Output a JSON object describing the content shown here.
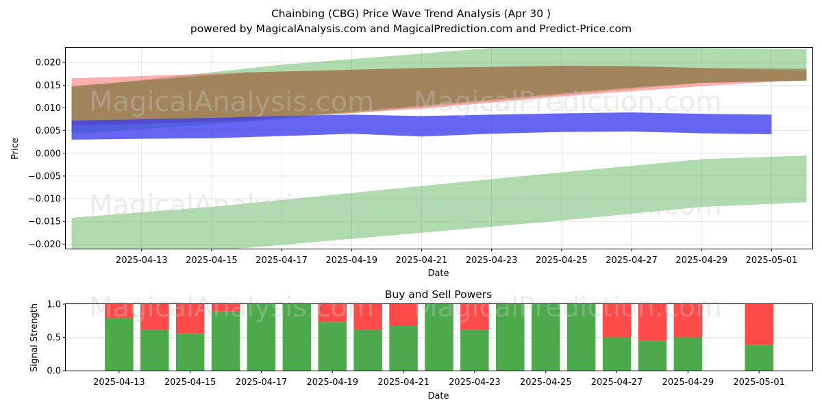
{
  "figure": {
    "title": "Chainbing (CBG) Price Wave Trend Analysis (Apr 30 )",
    "subtitle": "powered by MagicalAnalysis.com and MagicalPrediction.com and Predict-Price.com",
    "watermarks": [
      "MagicalAnalysis.com",
      "MagicalPrediction.com"
    ]
  },
  "chart_data": [
    {
      "type": "area",
      "title": "",
      "xlabel": "Date",
      "ylabel": "Price",
      "ylim": [
        -0.021,
        0.0232
      ],
      "xlim": [
        "2025-04-10T20:00",
        "2025-05-02T04:00"
      ],
      "x_ticks": [
        "2025-04-13",
        "2025-04-15",
        "2025-04-17",
        "2025-04-19",
        "2025-04-21",
        "2025-04-23",
        "2025-04-25",
        "2025-04-27",
        "2025-04-29",
        "2025-05-01"
      ],
      "y_ticks": [
        0.02,
        0.015,
        0.01,
        0.005,
        0.0,
        -0.005,
        -0.01,
        -0.015,
        -0.02
      ],
      "y_tick_labels": [
        "0.020",
        "0.015",
        "0.010",
        "0.005",
        "0.000",
        "−0.005",
        "−0.010",
        "−0.015",
        "−0.020"
      ],
      "grid": true,
      "series": [
        {
          "name": "green upper band",
          "color": "#2ca02c",
          "opacity": 0.38,
          "x": [
            "2025-04-11",
            "2025-04-17",
            "2025-04-23",
            "2025-04-29",
            "2025-05-02"
          ],
          "upper": [
            0.0145,
            0.0195,
            0.0232,
            0.0232,
            0.023
          ],
          "lower": [
            0.0042,
            0.0075,
            0.0115,
            0.0155,
            0.016
          ]
        },
        {
          "name": "green lower band",
          "color": "#2ca02c",
          "opacity": 0.38,
          "x": [
            "2025-04-11",
            "2025-04-15",
            "2025-04-21",
            "2025-04-25",
            "2025-04-29",
            "2025-05-02"
          ],
          "upper": [
            -0.0142,
            -0.0118,
            -0.0072,
            -0.0042,
            -0.0013,
            -0.0005
          ],
          "lower": [
            -0.0215,
            -0.0215,
            -0.0175,
            -0.0148,
            -0.0118,
            -0.0108
          ]
        },
        {
          "name": "red band",
          "color": "#ff4d4d",
          "opacity": 0.45,
          "x": [
            "2025-04-11",
            "2025-04-16",
            "2025-04-21",
            "2025-04-25",
            "2025-04-29",
            "2025-05-02"
          ],
          "upper": [
            0.0165,
            0.0178,
            0.0188,
            0.0192,
            0.0188,
            0.018
          ],
          "lower": [
            0.0062,
            0.0075,
            0.0098,
            0.0125,
            0.0148,
            0.0162
          ]
        },
        {
          "name": "brown band",
          "color": "#8c7a4a",
          "opacity": 0.7,
          "x": [
            "2025-04-11",
            "2025-04-16",
            "2025-04-21",
            "2025-04-25",
            "2025-04-27",
            "2025-04-29",
            "2025-05-02"
          ],
          "upper": [
            0.0148,
            0.0178,
            0.0188,
            0.0193,
            0.0192,
            0.0188,
            0.0186
          ],
          "lower": [
            0.006,
            0.0072,
            0.0105,
            0.0132,
            0.0145,
            0.0155,
            0.016
          ]
        },
        {
          "name": "blue band",
          "color": "#3b3bf0",
          "opacity": 0.78,
          "x": [
            "2025-04-11",
            "2025-04-13",
            "2025-04-15",
            "2025-04-17",
            "2025-04-19",
            "2025-04-21",
            "2025-04-23",
            "2025-04-25",
            "2025-04-27",
            "2025-04-29",
            "2025-05-01"
          ],
          "upper": [
            0.0072,
            0.0075,
            0.0078,
            0.0082,
            0.0085,
            0.0082,
            0.0085,
            0.0088,
            0.009,
            0.0087,
            0.0085
          ],
          "lower": [
            0.003,
            0.0032,
            0.0033,
            0.0038,
            0.0043,
            0.0037,
            0.0043,
            0.0047,
            0.0048,
            0.0044,
            0.0042
          ]
        }
      ]
    },
    {
      "type": "bar",
      "title": "Buy and Sell Powers",
      "xlabel": "Date",
      "ylabel": "Signal Strength",
      "ylim": [
        0,
        1.0
      ],
      "xlim": [
        "2025-04-11T12:00",
        "2025-05-02T12:00"
      ],
      "x_ticks": [
        "2025-04-13",
        "2025-04-15",
        "2025-04-17",
        "2025-04-19",
        "2025-04-21",
        "2025-04-23",
        "2025-04-25",
        "2025-04-27",
        "2025-04-29",
        "2025-05-01"
      ],
      "y_ticks": [
        0.0,
        0.5,
        1.0
      ],
      "y_tick_labels": [
        "0.0",
        "0.5",
        "1.0"
      ],
      "grid": true,
      "buy_color": "#4caa4c",
      "sell_color": "#ff4a4a",
      "categories": [
        "2025-04-13",
        "2025-04-14",
        "2025-04-15",
        "2025-04-16",
        "2025-04-17",
        "2025-04-18",
        "2025-04-19",
        "2025-04-20",
        "2025-04-21",
        "2025-04-22",
        "2025-04-23",
        "2025-04-24",
        "2025-04-25",
        "2025-04-26",
        "2025-04-27",
        "2025-04-28",
        "2025-04-29",
        "2025-05-01"
      ],
      "series": [
        {
          "name": "Buy",
          "values": [
            0.79,
            0.61,
            0.56,
            0.89,
            1.0,
            1.0,
            0.73,
            0.61,
            0.68,
            1.0,
            0.61,
            1.0,
            1.0,
            1.0,
            0.5,
            0.45,
            0.5,
            0.39
          ]
        },
        {
          "name": "Sell",
          "values": [
            0.21,
            0.39,
            0.44,
            0.11,
            0.0,
            0.0,
            0.27,
            0.39,
            0.32,
            0.0,
            0.39,
            0.0,
            0.0,
            0.0,
            0.5,
            0.55,
            0.5,
            0.61
          ]
        }
      ]
    }
  ]
}
